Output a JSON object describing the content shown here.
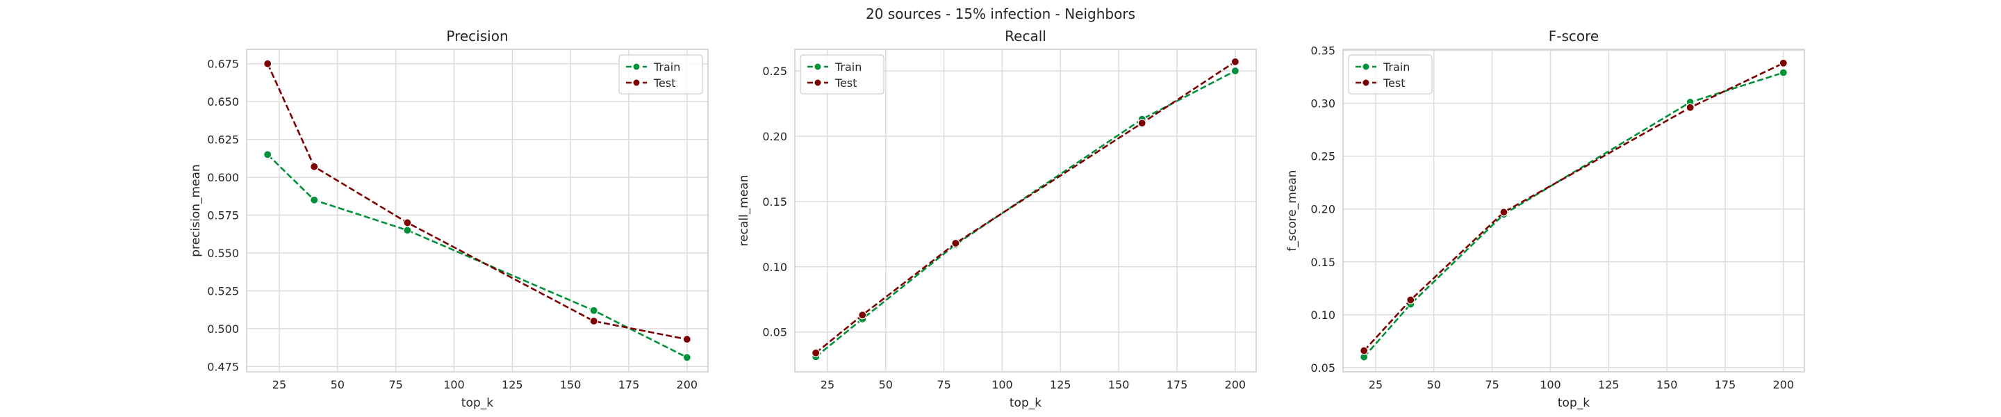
{
  "figure_title": "20 sources - 15% infection - Neighbors",
  "colors": {
    "train": "#00913a",
    "test": "#7d0000",
    "grid": "#dddddd",
    "spine": "#cccccc"
  },
  "chart_data": [
    {
      "type": "line",
      "title": "Precision",
      "xlabel": "top_k",
      "ylabel": "precision_mean",
      "x": [
        20,
        40,
        80,
        160,
        200
      ],
      "xlim": [
        11,
        209
      ],
      "ylim": [
        0.4715,
        0.6845
      ],
      "xticks": [
        25,
        50,
        75,
        100,
        125,
        150,
        175,
        200
      ],
      "yticks": [
        0.475,
        0.5,
        0.525,
        0.55,
        0.575,
        0.6,
        0.625,
        0.65,
        0.675
      ],
      "tick_decimals": 3,
      "grid": true,
      "legend_position": "top-right",
      "series": [
        {
          "name": "Train",
          "values": [
            0.615,
            0.585,
            0.565,
            0.512,
            0.481
          ]
        },
        {
          "name": "Test",
          "values": [
            0.675,
            0.607,
            0.57,
            0.505,
            0.493
          ]
        }
      ]
    },
    {
      "type": "line",
      "title": "Recall",
      "xlabel": "top_k",
      "ylabel": "recall_mean",
      "x": [
        20,
        40,
        80,
        160,
        200
      ],
      "xlim": [
        11,
        209
      ],
      "ylim": [
        0.0195,
        0.2665
      ],
      "xticks": [
        25,
        50,
        75,
        100,
        125,
        150,
        175,
        200
      ],
      "yticks": [
        0.05,
        0.1,
        0.15,
        0.2,
        0.25
      ],
      "tick_decimals": 2,
      "grid": true,
      "legend_position": "top-left",
      "series": [
        {
          "name": "Train",
          "values": [
            0.031,
            0.06,
            0.117,
            0.213,
            0.25
          ]
        },
        {
          "name": "Test",
          "values": [
            0.034,
            0.063,
            0.118,
            0.21,
            0.257
          ]
        }
      ]
    },
    {
      "type": "line",
      "title": "F-score",
      "xlabel": "top_k",
      "ylabel": "f_score_mean",
      "x": [
        20,
        40,
        80,
        160,
        200
      ],
      "xlim": [
        11,
        209
      ],
      "ylim": [
        0.046,
        0.351
      ],
      "xticks": [
        25,
        50,
        75,
        100,
        125,
        150,
        175,
        200
      ],
      "yticks": [
        0.05,
        0.1,
        0.15,
        0.2,
        0.25,
        0.3,
        0.35
      ],
      "tick_decimals": 2,
      "grid": true,
      "legend_position": "top-left",
      "series": [
        {
          "name": "Train",
          "values": [
            0.06,
            0.11,
            0.195,
            0.301,
            0.329
          ]
        },
        {
          "name": "Test",
          "values": [
            0.066,
            0.114,
            0.197,
            0.296,
            0.338
          ]
        }
      ]
    }
  ]
}
